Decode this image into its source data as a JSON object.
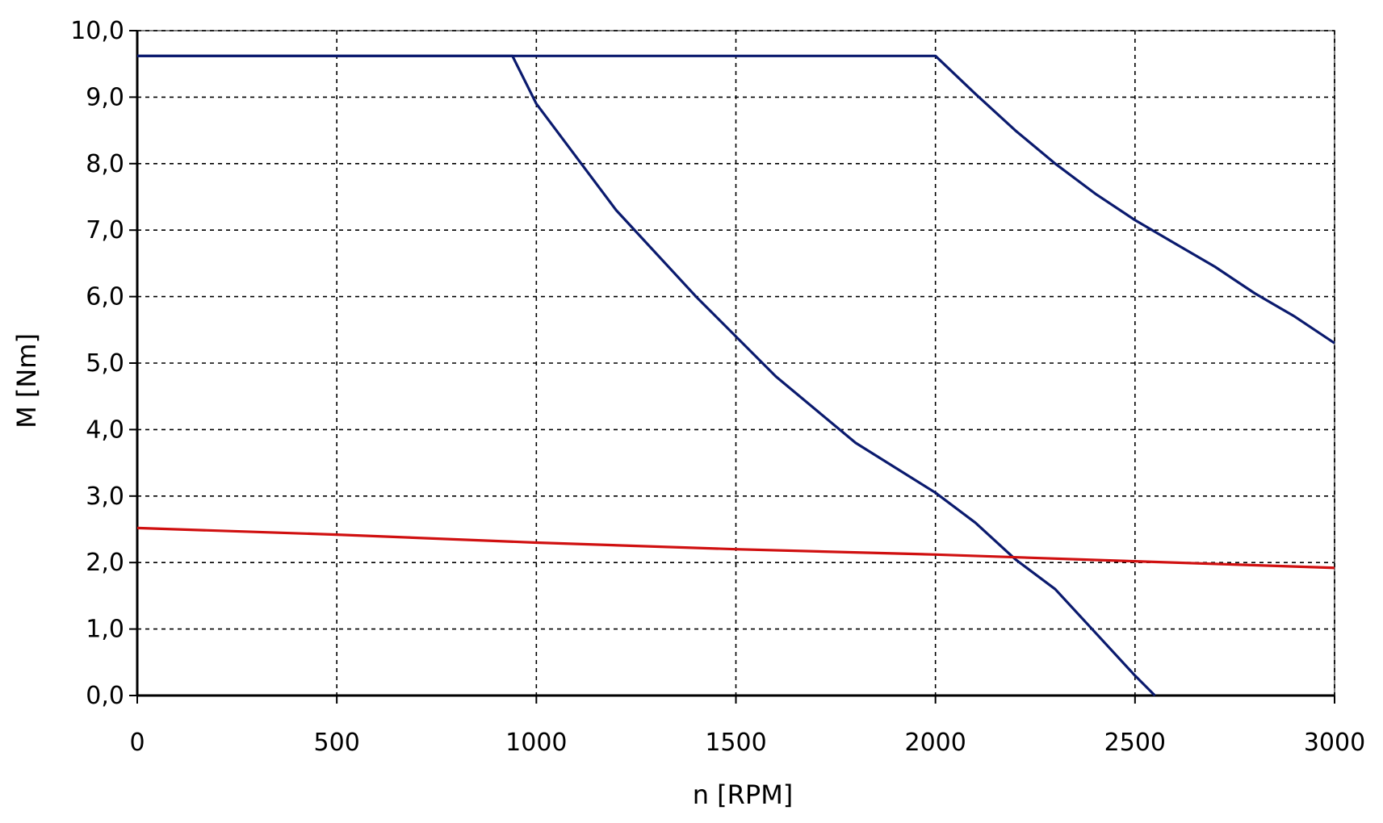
{
  "chart_data": {
    "type": "line",
    "title": "",
    "xlabel": "n [RPM]",
    "ylabel": "M [Nm]",
    "xlim": [
      0,
      3000
    ],
    "ylim": [
      0,
      10
    ],
    "x_ticks": [
      0,
      500,
      1000,
      1500,
      2000,
      2500,
      3000
    ],
    "x_tick_labels": [
      "0",
      "500",
      "1000",
      "1500",
      "2000",
      "2500",
      "3000"
    ],
    "y_ticks": [
      0,
      1,
      2,
      3,
      4,
      5,
      6,
      7,
      8,
      9,
      10
    ],
    "y_tick_labels": [
      "0,0",
      "1,0",
      "2,0",
      "3,0",
      "4,0",
      "5,0",
      "6,0",
      "7,0",
      "8,0",
      "9,0",
      "10,0"
    ],
    "grid": true,
    "legend": "none",
    "series": [
      {
        "color": "#0a1a6e",
        "points": [
          [
            0,
            9.62
          ],
          [
            940,
            9.62
          ],
          [
            1000,
            8.9
          ],
          [
            1200,
            7.3
          ],
          [
            1400,
            6.0
          ],
          [
            1600,
            4.8
          ],
          [
            1800,
            3.8
          ],
          [
            2000,
            3.05
          ],
          [
            2100,
            2.6
          ],
          [
            2200,
            2.05
          ],
          [
            2300,
            1.6
          ],
          [
            2400,
            0.95
          ],
          [
            2500,
            0.3
          ],
          [
            2550,
            0.0
          ]
        ]
      },
      {
        "color": "#0a1a6e",
        "points": [
          [
            0,
            9.62
          ],
          [
            2000,
            9.62
          ],
          [
            2100,
            9.05
          ],
          [
            2200,
            8.5
          ],
          [
            2300,
            8.0
          ],
          [
            2400,
            7.55
          ],
          [
            2500,
            7.15
          ],
          [
            2600,
            6.8
          ],
          [
            2700,
            6.45
          ],
          [
            2800,
            6.05
          ],
          [
            2900,
            5.7
          ],
          [
            3000,
            5.3
          ]
        ]
      },
      {
        "color": "#d01010",
        "points": [
          [
            0,
            2.52
          ],
          [
            500,
            2.42
          ],
          [
            1000,
            2.3
          ],
          [
            1500,
            2.2
          ],
          [
            2000,
            2.12
          ],
          [
            2500,
            2.02
          ],
          [
            3000,
            1.92
          ]
        ]
      }
    ]
  }
}
